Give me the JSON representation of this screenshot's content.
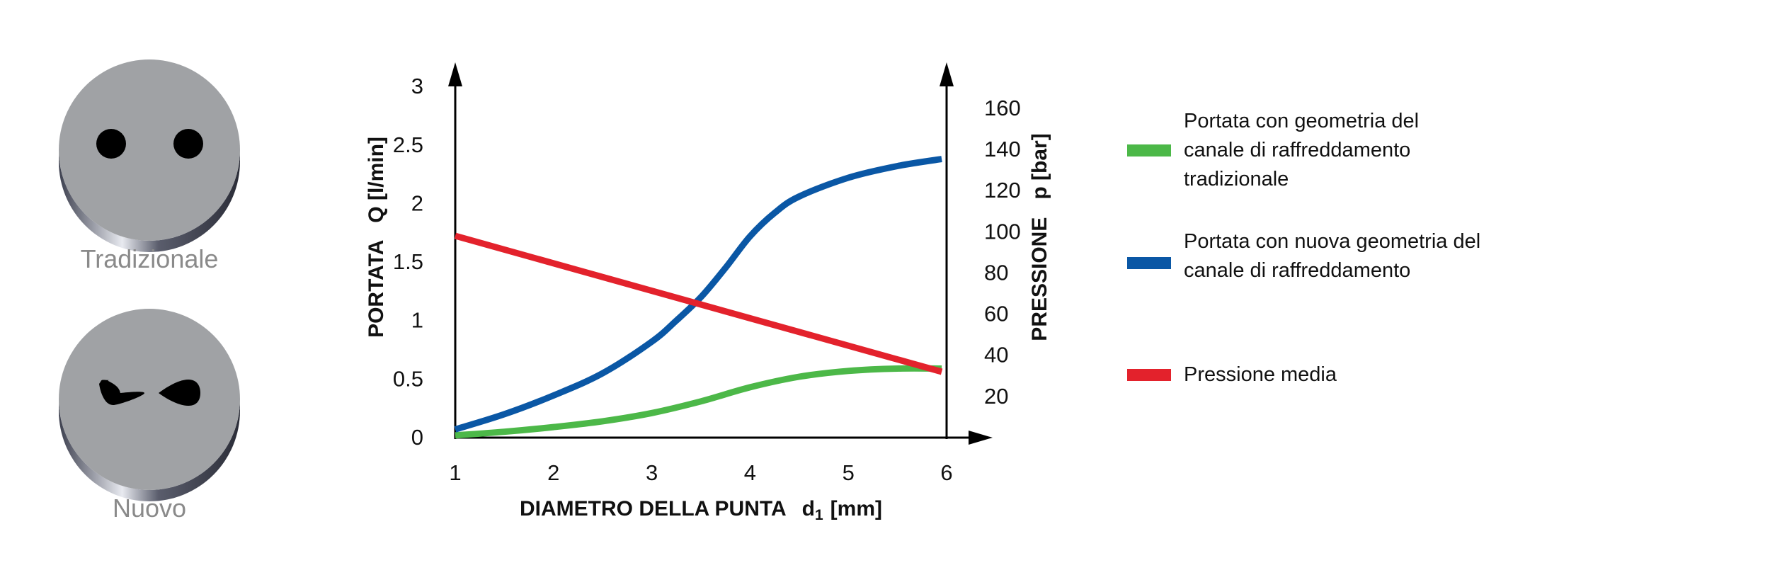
{
  "illustrations": {
    "traditional_caption": "Tradizionale",
    "new_caption": "Nuovo"
  },
  "chart_data": {
    "type": "line",
    "title": "",
    "xlabel_main": "DIAMETRO DELLA PUNTA",
    "xlabel_symbol": "d",
    "xlabel_subscript": "1",
    "xlabel_unit": "[mm]",
    "ylabel_left": "PORTATA   Q [l/min]",
    "ylabel_right": "PRESSIONE   p [bar]",
    "xlim": [
      1,
      6
    ],
    "ylim_left": [
      0,
      3.2
    ],
    "ylim_right": [
      0,
      170
    ],
    "xticks": [
      "1",
      "2",
      "3",
      "4",
      "5",
      "6"
    ],
    "yticks_left": [
      "0",
      "0.5",
      "1",
      "1.5",
      "2",
      "2.5",
      "3"
    ],
    "yticks_right": [
      "20",
      "40",
      "60",
      "80",
      "100",
      "120",
      "140",
      "160"
    ],
    "grid": false,
    "legend_position": "right",
    "series": [
      {
        "name": "Portata con geometria del canale di raffreddamento tradizionale",
        "axis": "left",
        "color": "#4cb848",
        "x": [
          1,
          1.5,
          2,
          2.5,
          3,
          3.5,
          4,
          4.5,
          5,
          5.5,
          5.95
        ],
        "y": [
          0.02,
          0.05,
          0.09,
          0.14,
          0.21,
          0.31,
          0.43,
          0.52,
          0.57,
          0.59,
          0.59
        ]
      },
      {
        "name": "Portata con nuova geometria del canale di raffreddamento",
        "axis": "left",
        "color": "#0a57a5",
        "x": [
          1,
          1.5,
          2,
          2.5,
          3,
          3.25,
          3.5,
          3.75,
          4,
          4.25,
          4.5,
          5,
          5.5,
          5.95
        ],
        "y": [
          0.07,
          0.2,
          0.36,
          0.55,
          0.82,
          1.0,
          1.2,
          1.45,
          1.72,
          1.92,
          2.06,
          2.22,
          2.32,
          2.38
        ]
      },
      {
        "name": "Pressione media",
        "axis": "right",
        "color": "#e3222c",
        "x": [
          1,
          5.95
        ],
        "y": [
          98,
          32
        ]
      }
    ]
  }
}
